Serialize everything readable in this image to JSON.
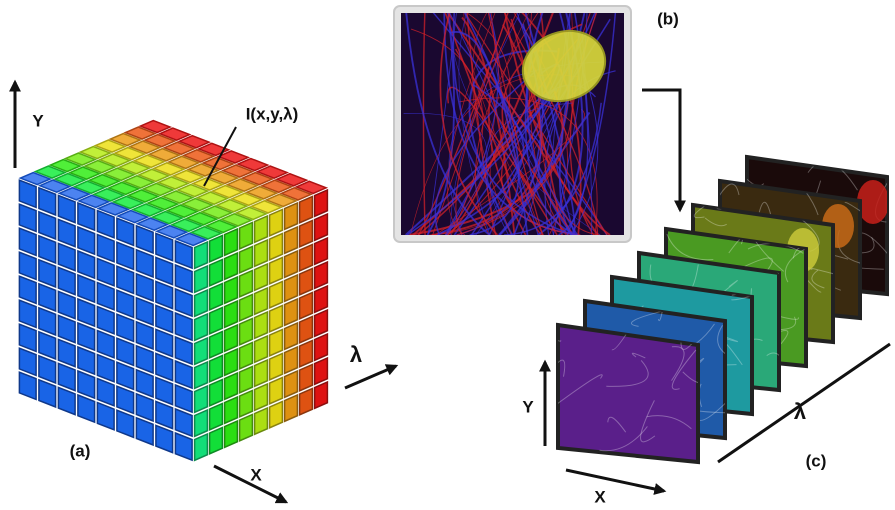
{
  "panel_a": {
    "label": "(a)",
    "axis_y": "Y",
    "axis_x": "X",
    "axis_lambda": "λ",
    "voxel_label": "I(x,y,λ)"
  },
  "panel_b": {
    "label": "(b)"
  },
  "panel_c": {
    "label": "(c)",
    "axis_y": "Y",
    "axis_x": "X",
    "axis_lambda": "λ"
  }
}
